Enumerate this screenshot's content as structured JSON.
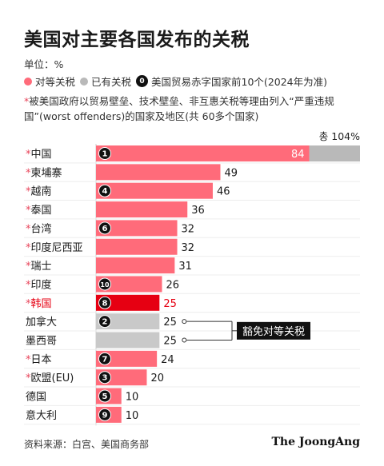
{
  "title": "美国对主要各国发布的关税",
  "unit": "单位：%",
  "legend": {
    "reciprocal": "对等关税",
    "existing": "已有关税",
    "rank_note": "美国贸易赤字国家前10个(2024年为准)",
    "rank_sample": "0"
  },
  "note": "被美国政府以贸易壁垒、技术壁垒、非互惠关税等理由列入“严重违规国”(worst offenders)的国家及地区(共 60多个国家)",
  "note_mark": "*",
  "source": "资料来源：白宫、美国商务部",
  "brand": "The JoongAng",
  "exempt_label": "豁免对等关税",
  "colors": {
    "reciprocal": "#ff6b7a",
    "existing": "#b9b9b9",
    "highlight": "#e60012",
    "asterisk": "#e8445a",
    "exempt": "#c9c9c9"
  },
  "chart_data": {
    "type": "bar",
    "orientation": "horizontal",
    "unit": "%",
    "total_label": "총 104%",
    "categories": [
      "中国",
      "柬埔寨",
      "越南",
      "泰国",
      "台湾",
      "印度尼西亚",
      "瑞士",
      "印度",
      "韩国",
      "加拿大",
      "墨西哥",
      "日本",
      "欧盟(EU)",
      "德国",
      "意大利"
    ],
    "values": [
      84,
      49,
      46,
      36,
      32,
      32,
      31,
      26,
      25,
      25,
      25,
      24,
      20,
      10,
      10
    ],
    "existing_values": [
      20,
      0,
      0,
      0,
      0,
      0,
      0,
      0,
      0,
      0,
      0,
      0,
      0,
      0,
      0
    ],
    "totals": [
      104,
      49,
      46,
      36,
      32,
      32,
      31,
      26,
      25,
      25,
      25,
      24,
      20,
      10,
      10
    ],
    "worst_offender": [
      true,
      true,
      true,
      true,
      true,
      true,
      true,
      true,
      true,
      false,
      false,
      true,
      true,
      false,
      false
    ],
    "deficit_rank": [
      1,
      null,
      4,
      null,
      6,
      null,
      null,
      10,
      8,
      2,
      null,
      7,
      3,
      5,
      9
    ],
    "exempt": [
      false,
      false,
      false,
      false,
      false,
      false,
      false,
      false,
      false,
      true,
      true,
      false,
      false,
      false,
      false
    ],
    "highlight": [
      false,
      false,
      false,
      false,
      false,
      false,
      false,
      false,
      true,
      false,
      false,
      false,
      false,
      false,
      false
    ],
    "xlim": [
      0,
      104
    ],
    "grid": false,
    "legend_position": "top-left"
  }
}
